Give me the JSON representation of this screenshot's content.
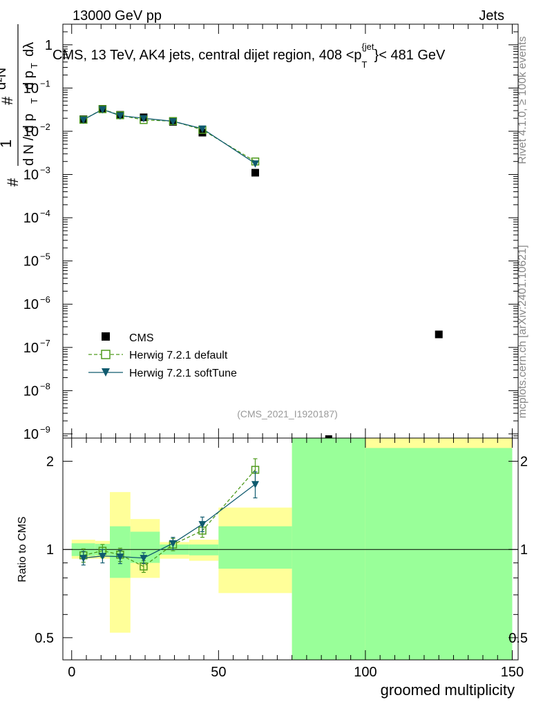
{
  "header": {
    "left": "13000 GeV pp",
    "right": "Jets"
  },
  "side_labels": {
    "rivet": "Rivet 4.1.0, ≥ 100k events",
    "mcplots": "mcplots.cern.ch [arXiv:2401.10621]"
  },
  "colors": {
    "cms": "#000000",
    "default": "#4e9a1c",
    "softtune": "#0f5a6e",
    "band_yellow": "#ffff99",
    "band_green": "#99ff99"
  },
  "chart_data": [
    {
      "type": "scatter",
      "panel": "main",
      "title": "CMS, 13 TeV, AK4 jets, central dijet region, 408 < p_T^{jet} < 481 GeV",
      "title_parts": {
        "prefix": "CMS, 13 TeV, AK4 jets, central dijet region, 408 <p",
        "sub": "T",
        "sup": "{jet",
        "suffix": "}< 481 GeV"
      },
      "ylabel": "1/(dN/dp_T) d²N/(dp_T dλ)",
      "ylabel_parts": {
        "one": "1",
        "num": "d²N",
        "num_pt": "d p",
        "den": "d N / d p",
        "den_lambda": "dλ",
        "sub": "T",
        "hash": "#"
      },
      "yscale": "log",
      "ylim": [
        8e-10,
        3
      ],
      "xlim": [
        -3,
        152
      ],
      "yticks": [
        {
          "value": 1,
          "base": "1",
          "exp": ""
        },
        {
          "value": 0.1,
          "base": "10",
          "exp": "−1"
        },
        {
          "value": 0.01,
          "base": "10",
          "exp": "−2"
        },
        {
          "value": 0.001,
          "base": "10",
          "exp": "−3"
        },
        {
          "value": 0.0001,
          "base": "10",
          "exp": "−4"
        },
        {
          "value": 1e-05,
          "base": "10",
          "exp": "−5"
        },
        {
          "value": 1e-06,
          "base": "10",
          "exp": "−6"
        },
        {
          "value": 1e-07,
          "base": "10",
          "exp": "−7"
        },
        {
          "value": 1e-08,
          "base": "10",
          "exp": "−8"
        },
        {
          "value": 1e-09,
          "base": "10",
          "exp": "−9"
        }
      ],
      "annotation": "(CMS_2021_I1920187)",
      "legend_position": "lower-left",
      "series": [
        {
          "name": "CMS",
          "marker": "square",
          "points": [
            {
              "x": 4,
              "y": 0.019
            },
            {
              "x": 10.5,
              "y": 0.033
            },
            {
              "x": 16.5,
              "y": 0.024
            },
            {
              "x": 24.5,
              "y": 0.021
            },
            {
              "x": 34.5,
              "y": 0.0165
            },
            {
              "x": 44.5,
              "y": 0.0093
            },
            {
              "x": 62.5,
              "y": 0.0011
            },
            {
              "x": 87.5,
              "y": 7e-10
            },
            {
              "x": 125,
              "y": 2e-07
            }
          ]
        },
        {
          "name": "Herwig 7.2.1 default",
          "marker": "open-square",
          "line": "dashed",
          "points": [
            {
              "x": 4,
              "y": 0.0185
            },
            {
              "x": 10.5,
              "y": 0.0325
            },
            {
              "x": 16.5,
              "y": 0.0235
            },
            {
              "x": 24.5,
              "y": 0.0182
            },
            {
              "x": 34.5,
              "y": 0.0172
            },
            {
              "x": 44.5,
              "y": 0.0108
            },
            {
              "x": 62.5,
              "y": 0.002
            }
          ]
        },
        {
          "name": "Herwig 7.2.1 softTune",
          "marker": "down-triangle",
          "line": "solid",
          "points": [
            {
              "x": 4,
              "y": 0.0185
            },
            {
              "x": 10.5,
              "y": 0.032
            },
            {
              "x": 16.5,
              "y": 0.023
            },
            {
              "x": 24.5,
              "y": 0.02
            },
            {
              "x": 34.5,
              "y": 0.017
            },
            {
              "x": 44.5,
              "y": 0.0115
            },
            {
              "x": 62.5,
              "y": 0.0018
            }
          ]
        }
      ]
    },
    {
      "type": "line",
      "panel": "ratio",
      "ylabel": "Ratio to CMS",
      "xlabel": "groomed multiplicity",
      "yscale": "log",
      "ylim": [
        0.42,
        2.4
      ],
      "xlim": [
        -3,
        152
      ],
      "xticks": [
        0,
        50,
        100,
        150
      ],
      "yticks": [
        0.5,
        1,
        2
      ],
      "reference_line": 1,
      "bands": [
        {
          "x0": 0,
          "x1": 8,
          "yellow": [
            0.93,
            1.08
          ],
          "green": [
            0.95,
            1.05
          ]
        },
        {
          "x0": 8,
          "x1": 13,
          "yellow": [
            0.93,
            1.07
          ],
          "green": [
            0.955,
            1.045
          ]
        },
        {
          "x0": 13,
          "x1": 20,
          "yellow": [
            0.52,
            1.57
          ],
          "green": [
            0.8,
            1.2
          ]
        },
        {
          "x0": 20,
          "x1": 30,
          "yellow": [
            0.8,
            1.27
          ],
          "green": [
            0.9,
            1.15
          ]
        },
        {
          "x0": 30,
          "x1": 40,
          "yellow": [
            0.93,
            1.06
          ],
          "green": [
            0.96,
            1.04
          ]
        },
        {
          "x0": 40,
          "x1": 50,
          "yellow": [
            0.915,
            1.08
          ],
          "green": [
            0.955,
            1.04
          ]
        },
        {
          "x0": 50,
          "x1": 75,
          "yellow": [
            0.71,
            1.39
          ],
          "green": [
            0.86,
            1.2
          ]
        },
        {
          "x0": 75,
          "x1": 100,
          "yellow": [
            0.3,
            3.0
          ],
          "green": [
            0.3,
            3.0
          ]
        },
        {
          "x0": 100,
          "x1": 150,
          "yellow": [
            0.3,
            3.0
          ],
          "green": [
            0.3,
            2.22
          ]
        }
      ],
      "series": [
        {
          "name": "Herwig 7.2.1 default",
          "points": [
            {
              "x": 4,
              "y": 0.955,
              "err": 0.05
            },
            {
              "x": 10.5,
              "y": 0.99,
              "err": 0.05
            },
            {
              "x": 16.5,
              "y": 0.96,
              "err": 0.05
            },
            {
              "x": 24.5,
              "y": 0.875,
              "err": 0.04
            },
            {
              "x": 34.5,
              "y": 1.04,
              "err": 0.05
            },
            {
              "x": 44.5,
              "y": 1.16,
              "err": 0.06
            },
            {
              "x": 62.5,
              "y": 1.87,
              "err": 0.17
            }
          ]
        },
        {
          "name": "Herwig 7.2.1 softTune",
          "points": [
            {
              "x": 4,
              "y": 0.935,
              "err": 0.05
            },
            {
              "x": 10.5,
              "y": 0.95,
              "err": 0.05
            },
            {
              "x": 16.5,
              "y": 0.945,
              "err": 0.05
            },
            {
              "x": 24.5,
              "y": 0.935,
              "err": 0.04
            },
            {
              "x": 34.5,
              "y": 1.05,
              "err": 0.05
            },
            {
              "x": 44.5,
              "y": 1.22,
              "err": 0.07
            },
            {
              "x": 62.5,
              "y": 1.67,
              "err": 0.17
            }
          ]
        }
      ]
    }
  ]
}
